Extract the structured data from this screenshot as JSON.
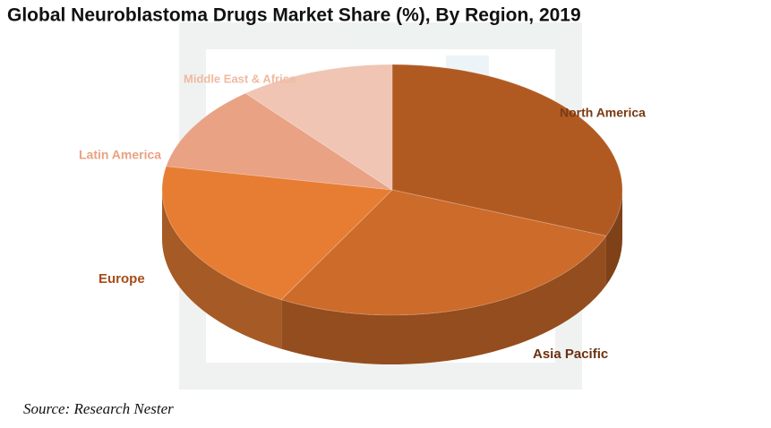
{
  "chart_data": {
    "type": "pie",
    "title": "Global Neuroblastoma Drugs Market Share (%), By Region, 2019",
    "categories": [
      "North America",
      "Asia Pacific",
      "Europe",
      "Latin America",
      "Middle East & Africa"
    ],
    "values": [
      31,
      27,
      20,
      11,
      11
    ],
    "colors": [
      "#b05a22",
      "#cd6b2a",
      "#e77d33",
      "#e9a283",
      "#f0c5b3"
    ],
    "source": "Source: Research Nester"
  }
}
